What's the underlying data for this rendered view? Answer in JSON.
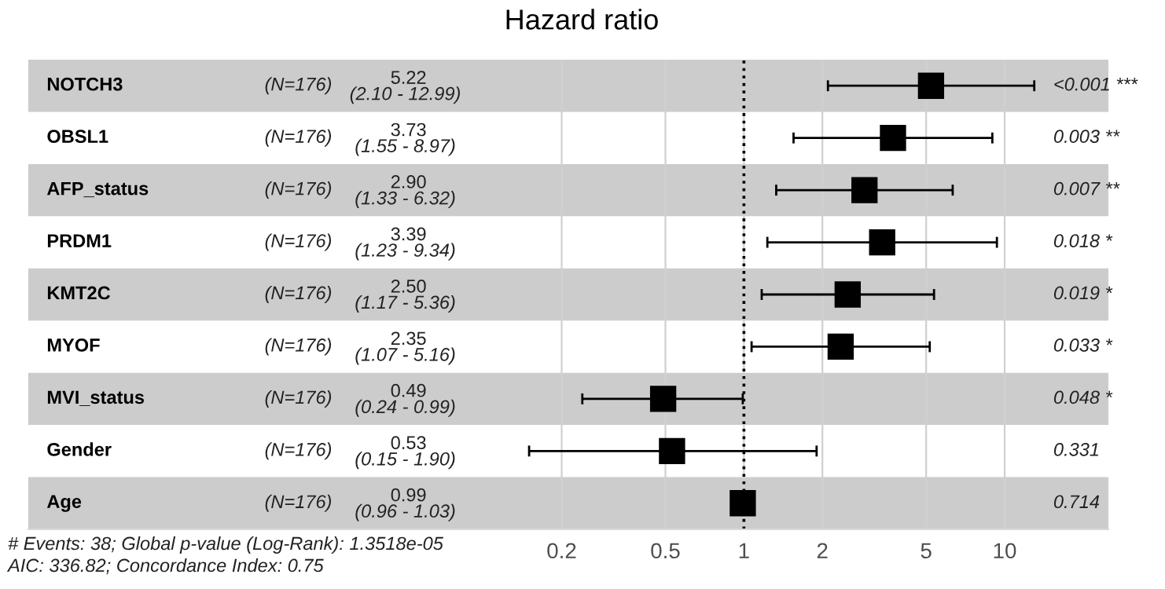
{
  "chart_data": {
    "type": "scatter",
    "orientation": "horizontal",
    "title": "Hazard ratio",
    "categories": [
      "NOTCH3",
      "OBSL1",
      "AFP_status",
      "PRDM1",
      "KMT2C",
      "MYOF",
      "MVI_status",
      "Gender",
      "Age"
    ],
    "values": [
      5.22,
      3.73,
      2.9,
      3.39,
      2.5,
      2.35,
      0.49,
      0.53,
      0.99
    ],
    "errors": [
      [
        2.1,
        12.99
      ],
      [
        1.55,
        8.97
      ],
      [
        1.33,
        6.32
      ],
      [
        1.23,
        9.34
      ],
      [
        1.17,
        5.36
      ],
      [
        1.07,
        5.16
      ],
      [
        0.24,
        0.99
      ],
      [
        0.15,
        1.9
      ],
      null
    ],
    "color": "#000000",
    "marker": "square",
    "log": "x",
    "xlim": [
      0.0018,
      25
    ],
    "xticks": [
      0.2,
      0.5,
      1,
      2,
      5,
      10
    ],
    "grid": "x",
    "ref_lines": [
      {
        "axis": "x",
        "value": 1,
        "line_style": "dotted",
        "color": "#000000"
      }
    ],
    "annotations": [
      "(N=176)",
      "(N=176)",
      "(N=176)",
      "(N=176)",
      "(N=176)",
      "(N=176)",
      "(N=176)",
      "(N=176)",
      "(N=176)",
      "5.22\n(2.10 - 12.99)",
      "3.73\n(1.55 - 8.97)",
      "2.90\n(1.33 - 6.32)",
      "3.39\n(1.23 - 9.34)",
      "2.50\n(1.17 - 5.36)",
      "2.35\n(1.07 - 5.16)",
      "0.49\n(0.24 - 0.99)",
      "0.53\n(0.15 - 1.90)",
      "0.99\n(0.96 - 1.03)",
      "<0.001 ***",
      "0.003 **",
      "0.007 **",
      "0.018 *",
      "0.019 *",
      "0.033 *",
      "0.048 *",
      "0.331",
      "0.714",
      "# Events: 38; Global p-value (Log-Rank): 1.3518e-05",
      "AIC: 336.82; Concordance Index: 0.75"
    ]
  }
}
